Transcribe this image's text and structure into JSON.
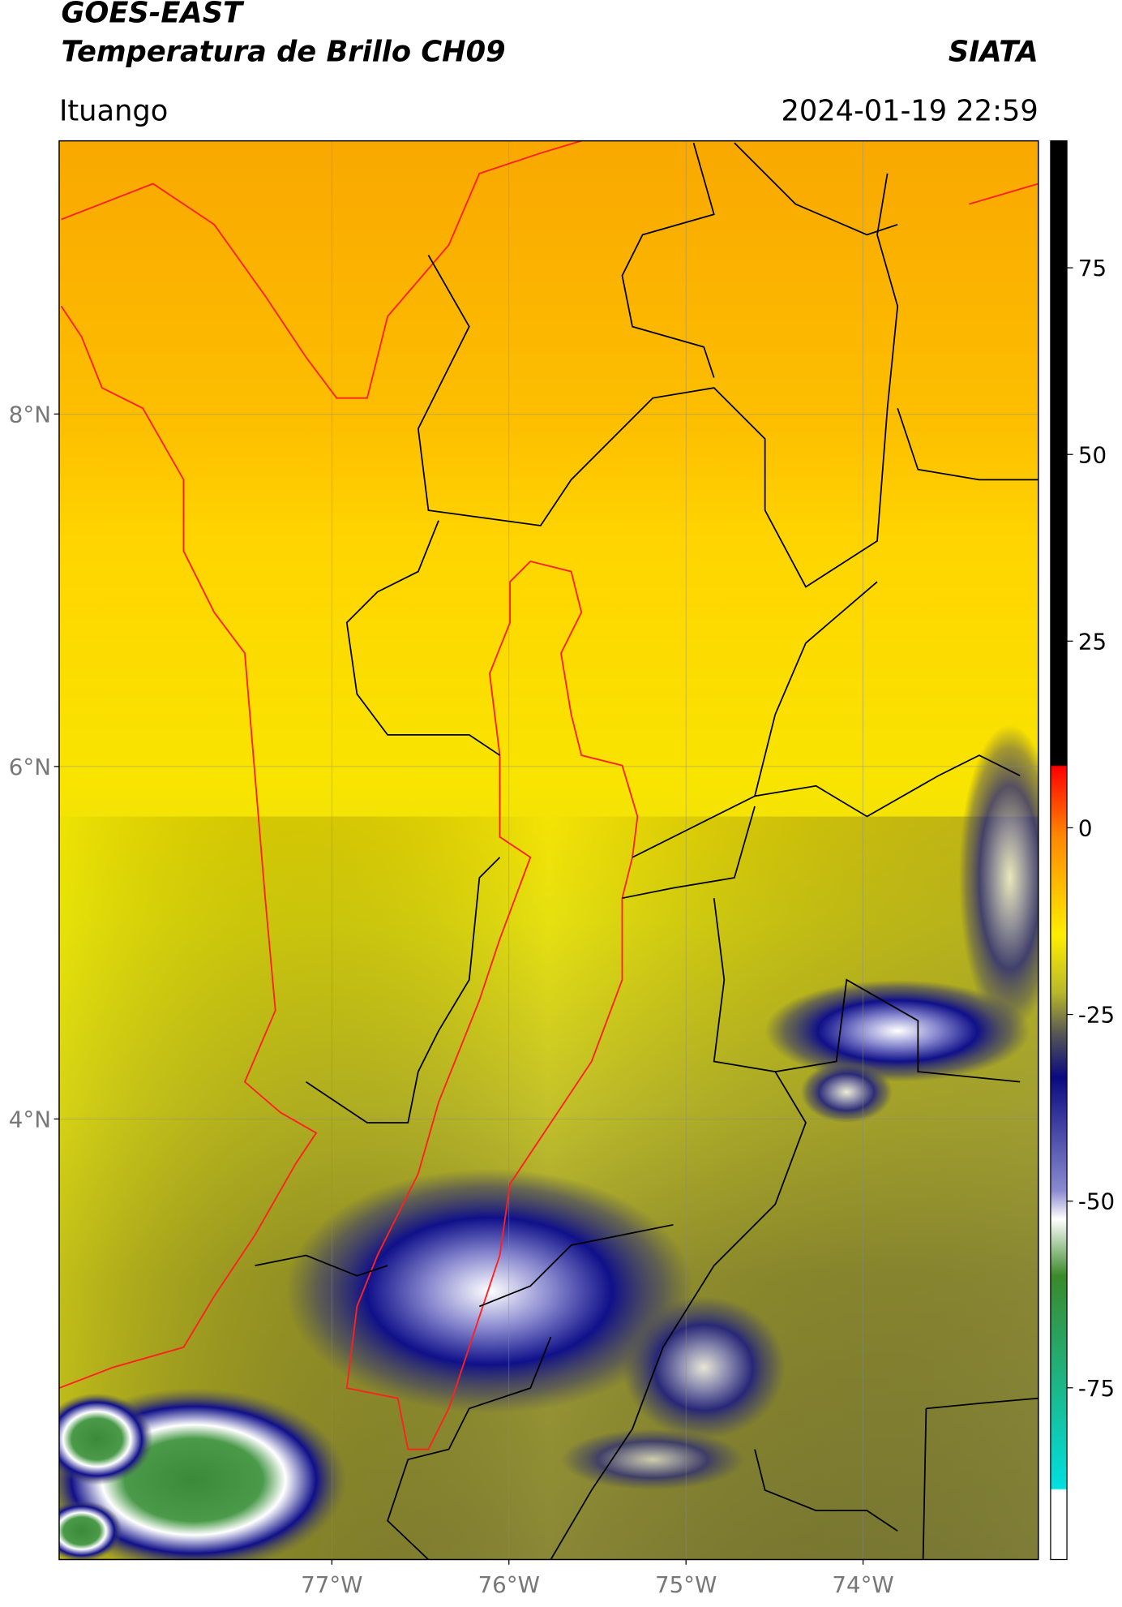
{
  "header": {
    "title_line1": "GOES-EAST",
    "title_line2": "Temperatura de Brillo CH09",
    "source": "SIATA",
    "location": "Ituango",
    "datetime": "2024-01-19 22:59"
  },
  "map": {
    "lat_lim": [
      1.5,
      9.55
    ],
    "lon_lim": [
      -78.54,
      -73.01
    ],
    "lat_ticks": [
      {
        "value": 8,
        "label": "8°N"
      },
      {
        "value": 6,
        "label": "6°N"
      },
      {
        "value": 4,
        "label": "4°N"
      }
    ],
    "lon_ticks": [
      {
        "value": -77,
        "label": "77°W"
      },
      {
        "value": -76,
        "label": "76°W"
      },
      {
        "value": -75,
        "label": "75°W"
      },
      {
        "value": -74,
        "label": "74°W"
      }
    ]
  },
  "colorbar": {
    "lim": [
      -98,
      92
    ],
    "ticks": [
      75,
      50,
      25,
      0,
      -25,
      -50,
      -75
    ]
  }
}
